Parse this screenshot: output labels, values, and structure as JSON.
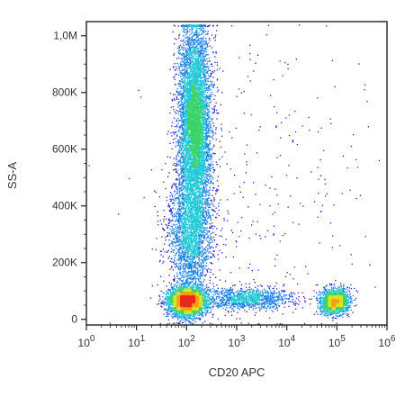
{
  "chart_data": {
    "type": "scatter",
    "title": "",
    "xlabel": "CD20 APC",
    "ylabel": "SS-A",
    "x_scale": "log",
    "y_scale": "linear",
    "xlim": [
      1,
      1000000
    ],
    "ylim": [
      -20000,
      1050000
    ],
    "x_ticks": [
      {
        "value": 1,
        "base": "10",
        "exp": "0"
      },
      {
        "value": 10,
        "base": "10",
        "exp": "1"
      },
      {
        "value": 100,
        "base": "10",
        "exp": "2"
      },
      {
        "value": 1000,
        "base": "10",
        "exp": "3"
      },
      {
        "value": 10000,
        "base": "10",
        "exp": "4"
      },
      {
        "value": 100000,
        "base": "10",
        "exp": "5"
      },
      {
        "value": 1000000,
        "base": "10",
        "exp": "6"
      }
    ],
    "y_ticks": [
      {
        "value": 0,
        "label": "0"
      },
      {
        "value": 200000,
        "label": "200K"
      },
      {
        "value": 400000,
        "label": "400K"
      },
      {
        "value": 600000,
        "label": "600K"
      },
      {
        "value": 800000,
        "label": "800K"
      },
      {
        "value": 1000000,
        "label": "1,0M"
      }
    ],
    "grid": false,
    "legend": "none",
    "colormap": [
      "#1f1fd0",
      "#1a7fe0",
      "#20c8d8",
      "#3ad36a",
      "#d9e31f",
      "#f5a018",
      "#e8281a"
    ],
    "populations": [
      {
        "x_log_center": 2.0,
        "x_log_sd": 0.18,
        "y_center": 65000,
        "y_sd": 25000,
        "weight": 0.24
      },
      {
        "x_log_center": 2.15,
        "x_log_sd": 0.16,
        "y_center": 690000,
        "y_sd": 180000,
        "weight": 0.42
      },
      {
        "x_log_center": 2.05,
        "x_log_sd": 0.22,
        "y_center": 300000,
        "y_sd": 110000,
        "weight": 0.14
      },
      {
        "x_log_center": 3.2,
        "x_log_sd": 0.45,
        "y_center": 75000,
        "y_sd": 20000,
        "weight": 0.07
      },
      {
        "x_log_center": 4.95,
        "x_log_sd": 0.14,
        "y_center": 65000,
        "y_sd": 22000,
        "weight": 0.11
      },
      {
        "x_log_center": 3.5,
        "x_log_sd": 1.2,
        "y_center": 450000,
        "y_sd": 300000,
        "weight": 0.02
      }
    ]
  }
}
